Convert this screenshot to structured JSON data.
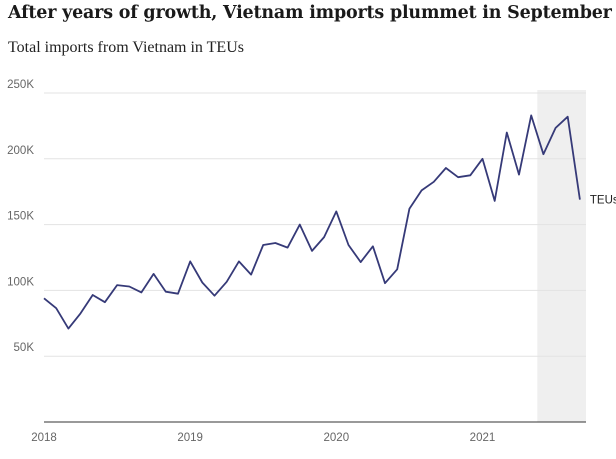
{
  "chart_data": {
    "type": "line",
    "title": "After years of growth, Vietnam imports plummet in September",
    "subtitle": "Total imports from Vietnam in TEUs",
    "series": [
      {
        "name": "TEUs",
        "x": [
          "2018-01",
          "2018-02",
          "2018-03",
          "2018-04",
          "2018-05",
          "2018-06",
          "2018-07",
          "2018-08",
          "2018-09",
          "2018-10",
          "2018-11",
          "2018-12",
          "2019-01",
          "2019-02",
          "2019-03",
          "2019-04",
          "2019-05",
          "2019-06",
          "2019-07",
          "2019-08",
          "2019-09",
          "2019-10",
          "2019-11",
          "2019-12",
          "2020-01",
          "2020-02",
          "2020-03",
          "2020-04",
          "2020-05",
          "2020-06",
          "2020-07",
          "2020-08",
          "2020-09",
          "2020-10",
          "2020-11",
          "2020-12",
          "2021-01",
          "2021-02",
          "2021-03",
          "2021-04",
          "2021-05",
          "2021-06",
          "2021-07",
          "2021-08",
          "2021-09"
        ],
        "values": [
          94000,
          86500,
          71000,
          82500,
          96500,
          91000,
          104000,
          103000,
          98500,
          112500,
          99000,
          97500,
          122000,
          106000,
          96000,
          106500,
          122000,
          112000,
          134500,
          136000,
          132500,
          150000,
          130000,
          140500,
          160000,
          134500,
          121500,
          133500,
          105500,
          116000,
          162000,
          176000,
          182500,
          193000,
          186000,
          187500,
          200000,
          168000,
          220000,
          188000,
          233000,
          203500,
          223500,
          232000,
          169000
        ]
      }
    ],
    "ylim": [
      0,
      250000
    ],
    "yticks": [
      50000,
      100000,
      150000,
      200000,
      250000
    ],
    "ytick_labels": [
      "50K",
      "100K",
      "150K",
      "200K",
      "250K"
    ],
    "xticks": [
      "2018-01",
      "2019-01",
      "2020-01",
      "2021-01"
    ],
    "xtick_labels": [
      "2018",
      "2019",
      "2020",
      "2021"
    ],
    "highlight_range": [
      "2021-06",
      "2021-09"
    ],
    "grid": true,
    "colors": {
      "line": "#363a78",
      "highlight": "#efefef",
      "grid": "#e3e3e3",
      "axis": "#333333"
    }
  }
}
